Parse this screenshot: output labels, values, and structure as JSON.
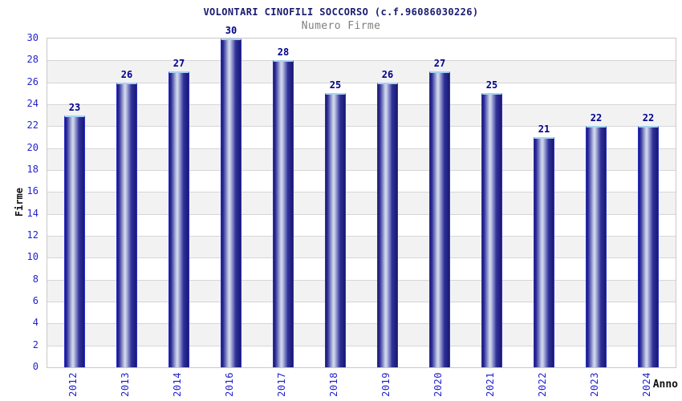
{
  "chart_data": {
    "type": "bar",
    "title": "VOLONTARI CINOFILI SOCCORSO (c.f.96086030226)",
    "subtitle": "Numero Firme",
    "xlabel": "Anno",
    "ylabel": "Firme",
    "categories": [
      "2012",
      "2013",
      "2014",
      "2016",
      "2017",
      "2018",
      "2019",
      "2020",
      "2021",
      "2022",
      "2023",
      "2024"
    ],
    "values": [
      23,
      26,
      27,
      30,
      28,
      25,
      26,
      27,
      25,
      21,
      22,
      22
    ],
    "ylim": [
      0,
      30
    ],
    "ytick_step": 2,
    "grid": true,
    "legend_position": "none",
    "colors": {
      "title": "#1a1a70",
      "subtitle": "#7f7f7f",
      "tick_label": "#2323cc",
      "value_label": "#00008b",
      "axis_title": "#111111",
      "gridline": "#d6d6d6",
      "plot_border": "#c9c9c9",
      "band_white": "#ffffff",
      "band_gray": "#f2f2f2",
      "bar_dark": "#191970",
      "bar_mid": "#30309b",
      "bar_light": "#ccd4ea",
      "bar_side_border": "#2d2dc8",
      "bar_top_border": "#a6d3f2",
      "background": "#ffffff"
    }
  }
}
